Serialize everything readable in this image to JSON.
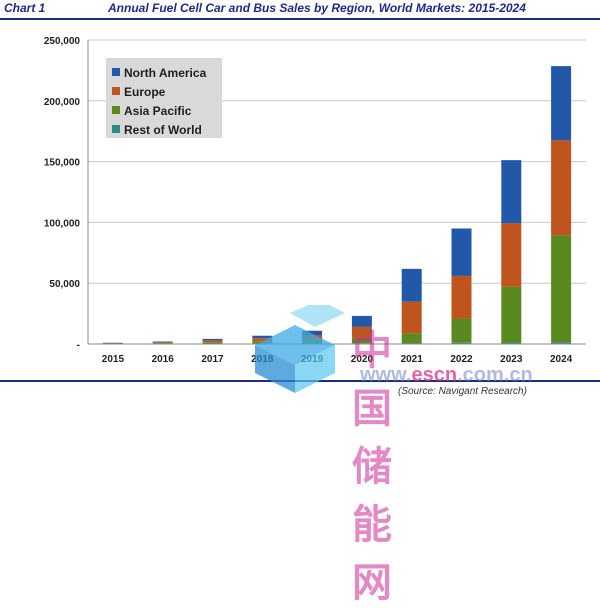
{
  "header": {
    "chart_label": "Chart 1",
    "title": "Annual Fuel Cell Car and Bus Sales by Region, World Markets: 2015-2024"
  },
  "source": "(Source: Navigant Research)",
  "watermark": {
    "chinese_text": "中国储能网",
    "url_pre": "www.",
    "url_highlight": "escn",
    "url_post": ".com.cn"
  },
  "colors": {
    "north_america": "#2159a8",
    "europe": "#c0541f",
    "asia_pacific": "#5a8a1f",
    "rest_of_world": "#2a8a8a",
    "grid": "#c8c8c8",
    "legend_bg": "#d9d9d9"
  },
  "chart_data": {
    "type": "bar",
    "stacked": true,
    "title": "Annual Fuel Cell Car and Bus Sales by Region, World Markets: 2015-2024",
    "xlabel": "",
    "ylabel": "",
    "categories": [
      "2015",
      "2016",
      "2017",
      "2018",
      "2019",
      "2020",
      "2021",
      "2022",
      "2023",
      "2024"
    ],
    "ylim": [
      0,
      250000
    ],
    "yticks": [
      0,
      50000,
      100000,
      150000,
      200000,
      250000
    ],
    "ytick_labels": [
      "-",
      "50,000",
      "100,000",
      "150,000",
      "200,000",
      "250,000"
    ],
    "grid": true,
    "legend_position": "top-left",
    "series": [
      {
        "name": "Rest of World",
        "color_key": "rest_of_world",
        "values": [
          100,
          150,
          200,
          300,
          400,
          600,
          800,
          1000,
          1200,
          1500
        ]
      },
      {
        "name": "Asia Pacific",
        "color_key": "asia_pacific",
        "values": [
          300,
          600,
          1200,
          2000,
          3000,
          4500,
          8000,
          20000,
          46000,
          88000
        ]
      },
      {
        "name": "Europe",
        "color_key": "europe",
        "values": [
          300,
          700,
          1600,
          2500,
          4000,
          9000,
          26000,
          35000,
          52000,
          78000
        ]
      },
      {
        "name": "North America",
        "color_key": "north_america",
        "values": [
          300,
          600,
          1200,
          2000,
          3500,
          9000,
          27000,
          39000,
          52000,
          61000
        ]
      }
    ]
  }
}
